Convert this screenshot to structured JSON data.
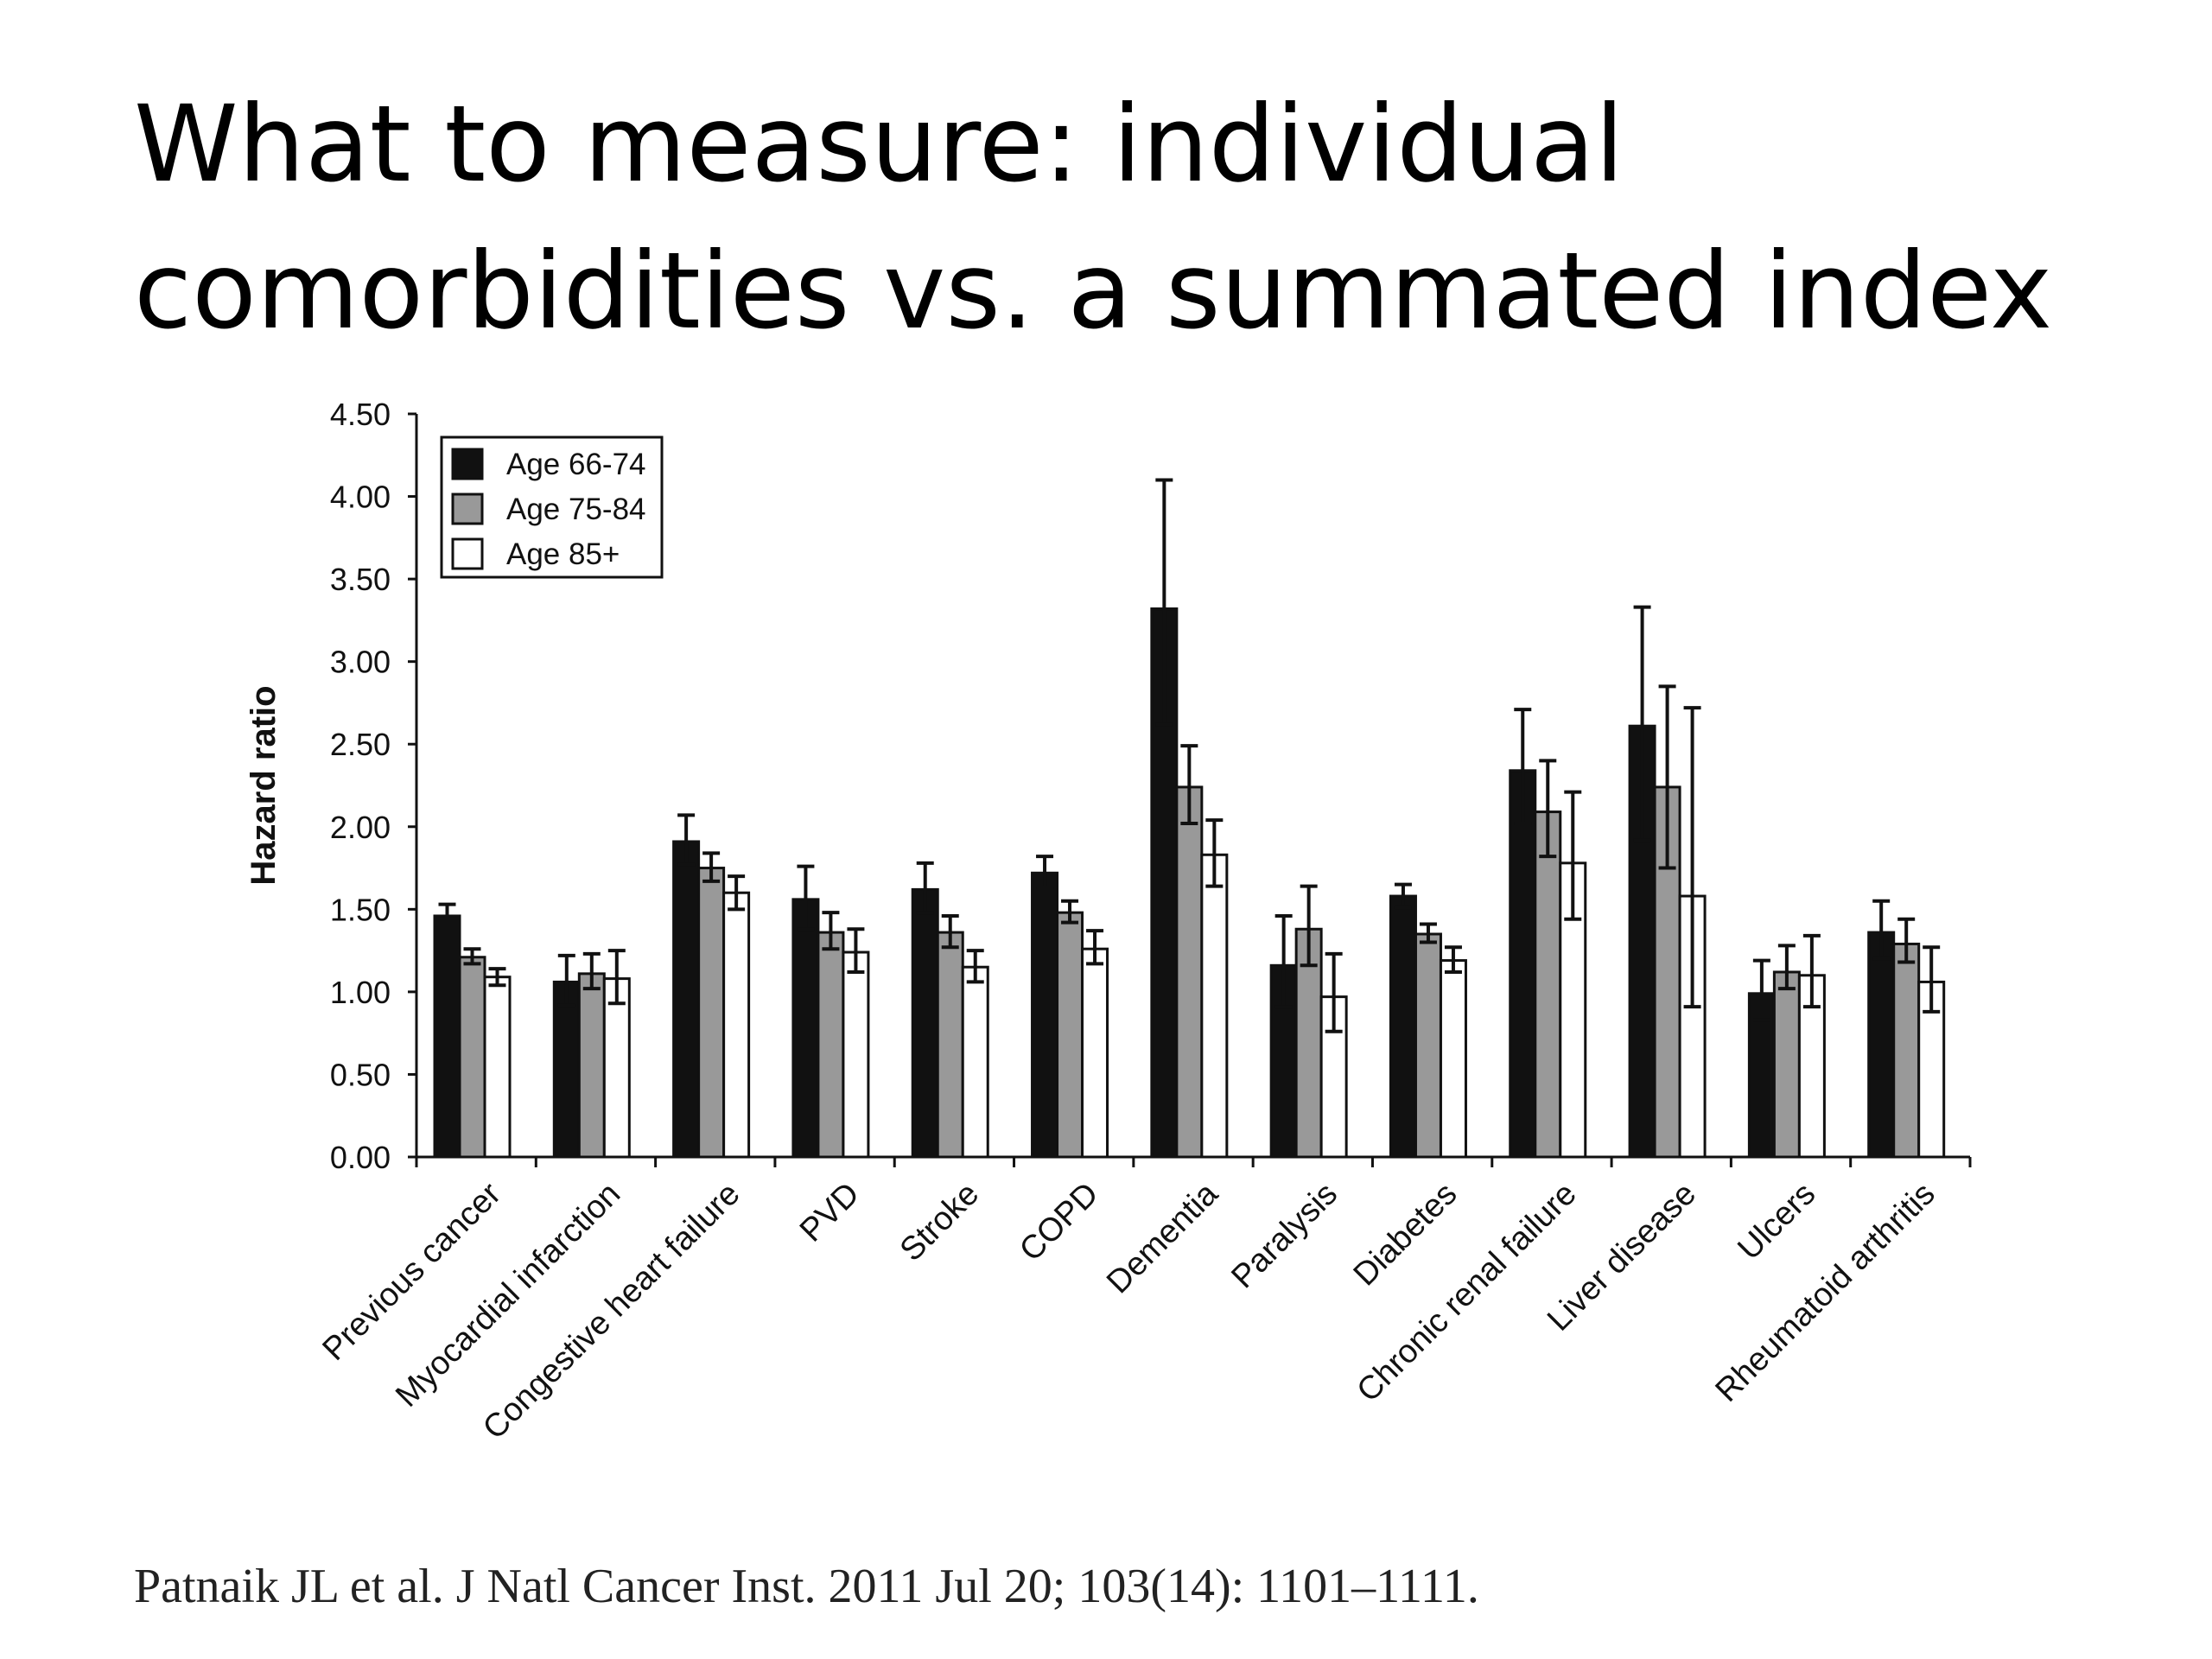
{
  "slide": {
    "title_line1": "What to measure: individual",
    "title_line2": "comorbidities vs. a summated index",
    "citation": "Patnaik JL et al. J Natl Cancer Inst. 2011 Jul 20; 103(14): 1101–1111."
  },
  "chart_data": {
    "type": "bar",
    "ylabel": "Hazard ratio",
    "ylim": [
      0,
      4.5
    ],
    "yticks": [
      "0.00",
      "0.50",
      "1.00",
      "1.50",
      "2.00",
      "2.50",
      "3.00",
      "3.50",
      "4.00",
      "4.50"
    ],
    "categories": [
      "Previous cancer",
      "Myocardial infarction",
      "Congestive heart failure",
      "PVD",
      "Stroke",
      "COPD",
      "Dementia",
      "Paralysis",
      "Diabetes",
      "Chronic renal failure",
      "Liver disease",
      "Ulcers",
      "Rheumatoid arthritis"
    ],
    "legend_position": "top-left",
    "series": [
      {
        "name": "Age 66-74",
        "color": "#111111",
        "values": [
          1.46,
          1.06,
          1.91,
          1.56,
          1.62,
          1.72,
          3.32,
          1.16,
          1.58,
          2.34,
          2.61,
          0.99,
          1.36
        ],
        "err_low": [
          1.4,
          0.92,
          1.77,
          1.38,
          1.48,
          1.63,
          2.62,
          0.91,
          1.51,
          2.02,
          1.92,
          0.83,
          1.2
        ],
        "err_high": [
          1.53,
          1.22,
          2.07,
          1.76,
          1.78,
          1.82,
          4.1,
          1.46,
          1.65,
          2.71,
          3.33,
          1.19,
          1.55
        ]
      },
      {
        "name": "Age 75-84",
        "color": "#999999",
        "values": [
          1.21,
          1.11,
          1.75,
          1.36,
          1.36,
          1.48,
          2.24,
          1.38,
          1.35,
          2.09,
          2.24,
          1.12,
          1.29
        ],
        "err_low": [
          1.17,
          1.02,
          1.67,
          1.26,
          1.27,
          1.42,
          2.02,
          1.16,
          1.3,
          1.82,
          1.75,
          1.02,
          1.18
        ],
        "err_high": [
          1.26,
          1.23,
          1.84,
          1.48,
          1.46,
          1.55,
          2.49,
          1.64,
          1.41,
          2.4,
          2.85,
          1.28,
          1.44
        ]
      },
      {
        "name": "Age 85+",
        "color": "#ffffff",
        "values": [
          1.09,
          1.08,
          1.6,
          1.24,
          1.15,
          1.26,
          1.83,
          0.97,
          1.19,
          1.78,
          1.58,
          1.1,
          1.06
        ],
        "err_low": [
          1.04,
          0.93,
          1.5,
          1.12,
          1.06,
          1.17,
          1.64,
          0.76,
          1.12,
          1.44,
          0.91,
          0.91,
          0.88
        ],
        "err_high": [
          1.14,
          1.25,
          1.7,
          1.38,
          1.25,
          1.37,
          2.04,
          1.23,
          1.27,
          2.21,
          2.72,
          1.34,
          1.27
        ]
      }
    ]
  }
}
